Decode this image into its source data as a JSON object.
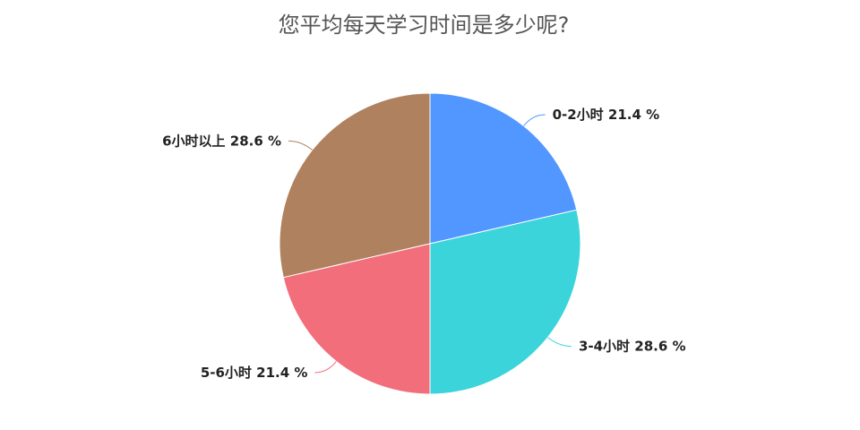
{
  "chart_data": {
    "type": "pie",
    "title": "您平均每天学习时间是多少呢?",
    "categories": [
      "0-2小时",
      "3-4小时",
      "5-6小时",
      "6小时以上"
    ],
    "values": [
      21.4,
      28.6,
      21.4,
      28.6
    ],
    "labels": [
      "0-2小时 21.4 %",
      "3-4小时 28.6 %",
      "5-6小时 21.4 %",
      "6小时以上 28.6 %"
    ],
    "colors": [
      "#5297FF",
      "#3AD4DA",
      "#F26E7B",
      "#AF815F"
    ],
    "start_angle": "12 o'clock",
    "direction": "clockwise"
  }
}
